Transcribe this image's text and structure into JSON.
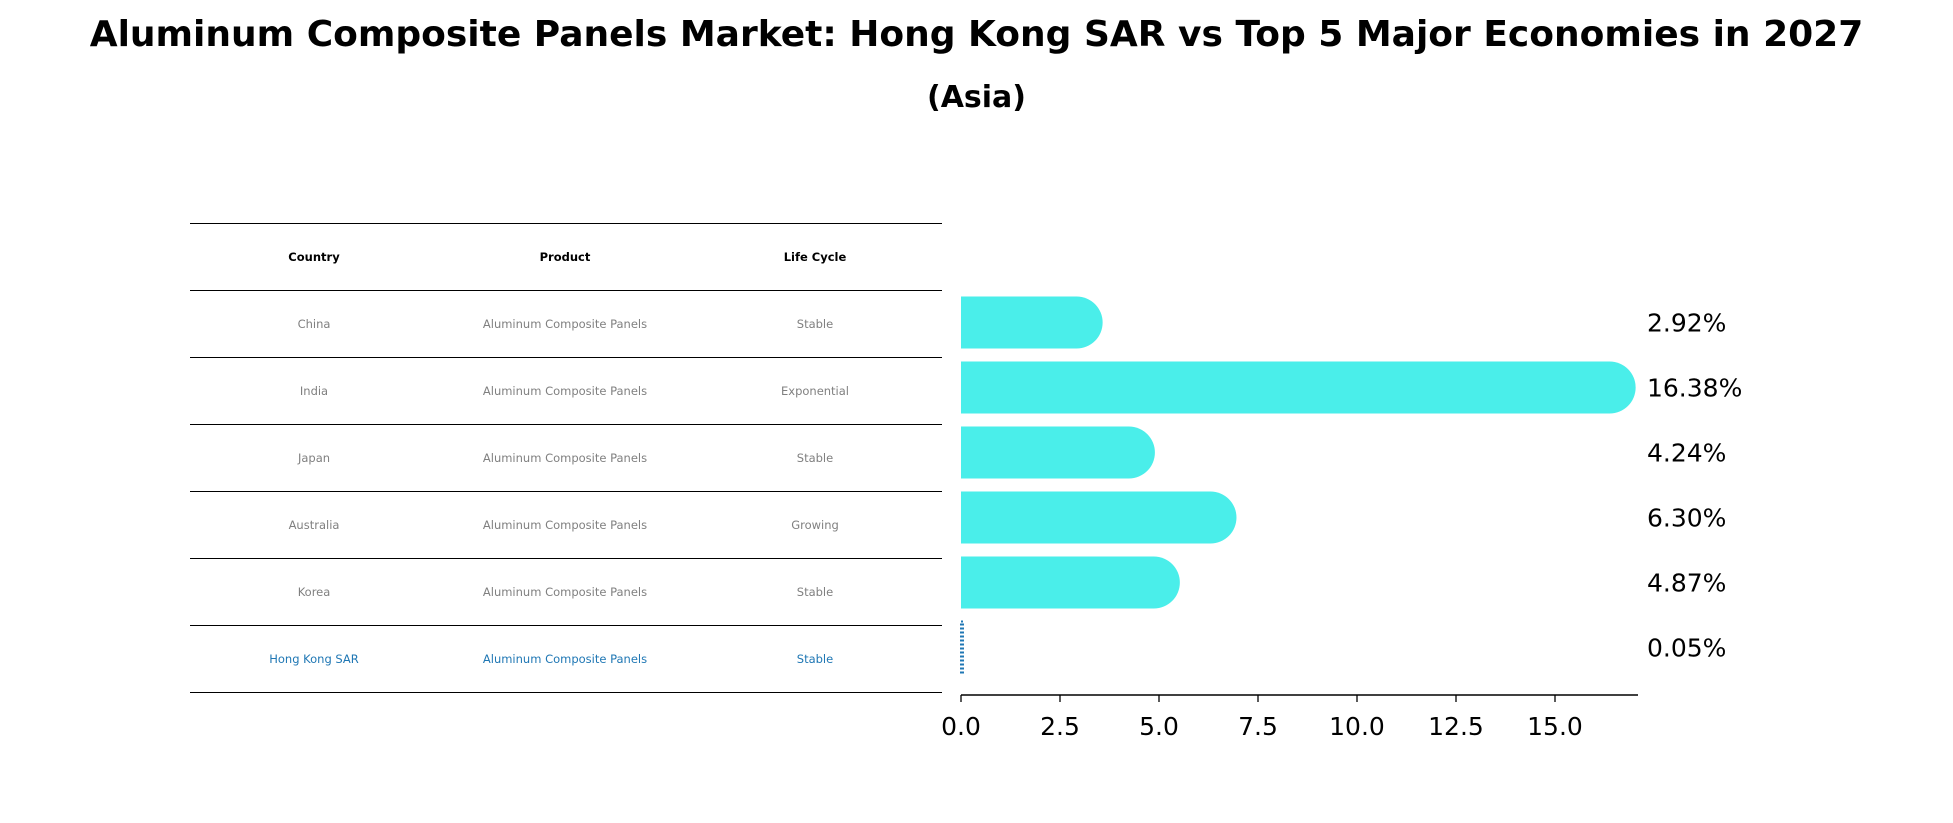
{
  "title": "Aluminum Composite Panels Market: Hong Kong SAR vs Top 5 Major Economies in 2027",
  "subtitle": "(Asia)",
  "table": {
    "headers": [
      "Country",
      "Product",
      "Life Cycle"
    ],
    "rows": [
      {
        "country": "China",
        "product": "Aluminum Composite Panels",
        "life_cycle": "Stable",
        "highlight": false
      },
      {
        "country": "India",
        "product": "Aluminum Composite Panels",
        "life_cycle": "Exponential",
        "highlight": false
      },
      {
        "country": "Japan",
        "product": "Aluminum Composite Panels",
        "life_cycle": "Stable",
        "highlight": false
      },
      {
        "country": "Australia",
        "product": "Aluminum Composite Panels",
        "life_cycle": "Growing",
        "highlight": false
      },
      {
        "country": "Korea",
        "product": "Aluminum Composite Panels",
        "life_cycle": "Stable",
        "highlight": false
      },
      {
        "country": "Hong Kong SAR",
        "product": "Aluminum Composite Panels",
        "life_cycle": "Stable",
        "highlight": true
      }
    ]
  },
  "chart_data": {
    "type": "bar",
    "orientation": "horizontal",
    "categories": [
      "China",
      "India",
      "Japan",
      "Australia",
      "Korea",
      "Hong Kong SAR"
    ],
    "values": [
      2.92,
      16.38,
      4.24,
      6.3,
      4.87,
      0.05
    ],
    "value_labels": [
      "2.92%",
      "16.38%",
      "4.24%",
      "6.30%",
      "4.87%",
      "0.05%"
    ],
    "xlim": [
      0,
      17.2
    ],
    "xticks": [
      0.0,
      2.5,
      5.0,
      7.5,
      10.0,
      12.5,
      15.0
    ],
    "xtick_labels": [
      "0.0",
      "2.5",
      "5.0",
      "7.5",
      "10.0",
      "12.5",
      "15.0"
    ],
    "xlabel": "",
    "ylabel": "",
    "grid": false,
    "colors": {
      "bar": "#4aeeea",
      "highlight": "#1f77b4"
    }
  }
}
